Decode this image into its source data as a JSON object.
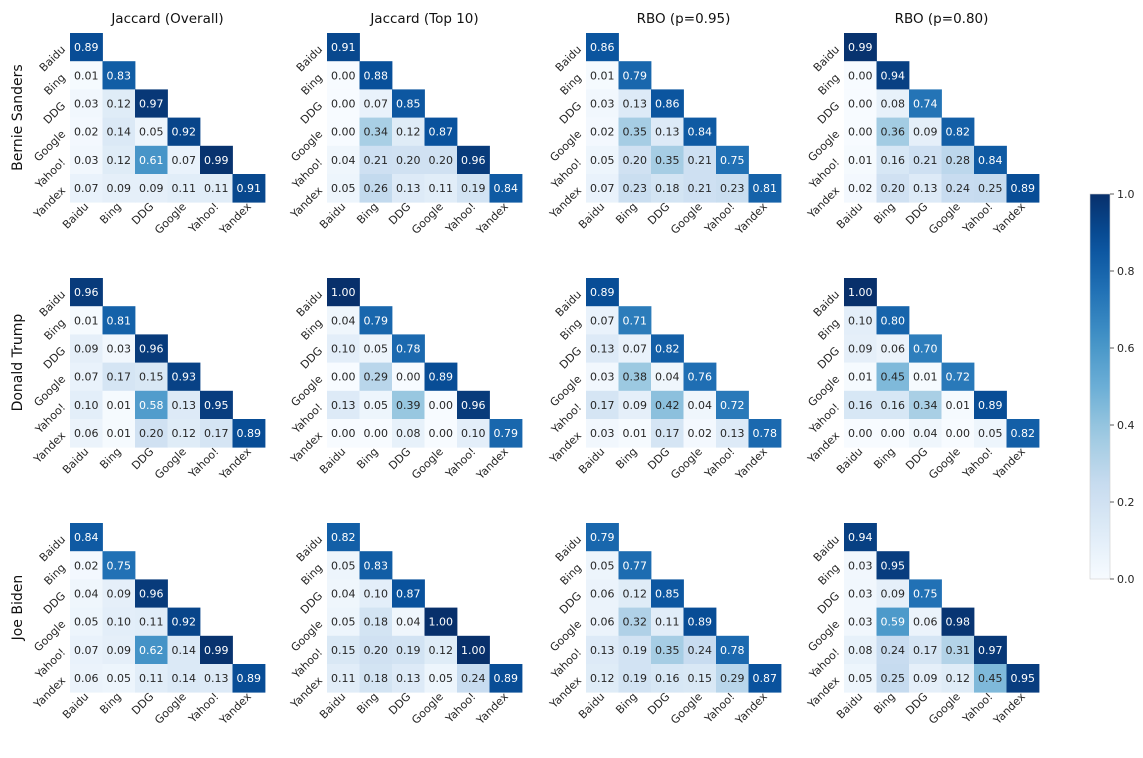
{
  "chart_data": {
    "type": "heatmap",
    "colormap": "Blues",
    "vmin": 0.0,
    "vmax": 1.0,
    "engines": [
      "Baidu",
      "Bing",
      "DDG",
      "Google",
      "Yahoo!",
      "Yandex"
    ],
    "metrics": [
      "Jaccard (Overall)",
      "Jaccard (Top 10)",
      "RBO (p=0.95)",
      "RBO (p=0.80)"
    ],
    "candidates": [
      "Bernie Sanders",
      "Donald Trump",
      "Joe Biden"
    ],
    "colorbar_ticks": [
      "0.0",
      "0.2",
      "0.4",
      "0.6",
      "0.8",
      "1.0"
    ],
    "matrices": [
      [
        [
          [
            0.89
          ],
          [
            0.01,
            0.83
          ],
          [
            0.03,
            0.12,
            0.97
          ],
          [
            0.02,
            0.14,
            0.05,
            0.92
          ],
          [
            0.03,
            0.12,
            0.61,
            0.07,
            0.99
          ],
          [
            0.07,
            0.09,
            0.09,
            0.11,
            0.11,
            0.91
          ]
        ],
        [
          [
            0.91
          ],
          [
            0.0,
            0.88
          ],
          [
            0.0,
            0.07,
            0.85
          ],
          [
            0.0,
            0.34,
            0.12,
            0.87
          ],
          [
            0.04,
            0.21,
            0.2,
            0.2,
            0.96
          ],
          [
            0.05,
            0.26,
            0.13,
            0.11,
            0.19,
            0.84
          ]
        ],
        [
          [
            0.86
          ],
          [
            0.01,
            0.79
          ],
          [
            0.03,
            0.13,
            0.86
          ],
          [
            0.02,
            0.35,
            0.13,
            0.84
          ],
          [
            0.05,
            0.2,
            0.35,
            0.21,
            0.75
          ],
          [
            0.07,
            0.23,
            0.18,
            0.21,
            0.23,
            0.81
          ]
        ],
        [
          [
            0.99
          ],
          [
            0.0,
            0.94
          ],
          [
            0.0,
            0.08,
            0.74
          ],
          [
            0.0,
            0.36,
            0.09,
            0.82
          ],
          [
            0.01,
            0.16,
            0.21,
            0.28,
            0.84
          ],
          [
            0.02,
            0.2,
            0.13,
            0.24,
            0.25,
            0.89
          ]
        ]
      ],
      [
        [
          [
            0.96
          ],
          [
            0.01,
            0.81
          ],
          [
            0.09,
            0.03,
            0.96
          ],
          [
            0.07,
            0.17,
            0.15,
            0.93
          ],
          [
            0.1,
            0.01,
            0.58,
            0.13,
            0.95
          ],
          [
            0.06,
            0.01,
            0.2,
            0.12,
            0.17,
            0.89
          ]
        ],
        [
          [
            1.0
          ],
          [
            0.04,
            0.79
          ],
          [
            0.1,
            0.05,
            0.78
          ],
          [
            0.0,
            0.29,
            0.0,
            0.89
          ],
          [
            0.13,
            0.05,
            0.39,
            0.0,
            0.96
          ],
          [
            0.0,
            0.0,
            0.08,
            0.0,
            0.1,
            0.79
          ]
        ],
        [
          [
            0.89
          ],
          [
            0.07,
            0.71
          ],
          [
            0.13,
            0.07,
            0.82
          ],
          [
            0.03,
            0.38,
            0.04,
            0.76
          ],
          [
            0.17,
            0.09,
            0.42,
            0.04,
            0.72
          ],
          [
            0.03,
            0.01,
            0.17,
            0.02,
            0.13,
            0.78
          ]
        ],
        [
          [
            1.0
          ],
          [
            0.1,
            0.8
          ],
          [
            0.09,
            0.06,
            0.7
          ],
          [
            0.01,
            0.45,
            0.01,
            0.72
          ],
          [
            0.16,
            0.16,
            0.34,
            0.01,
            0.89
          ],
          [
            0.0,
            0.0,
            0.04,
            0.0,
            0.05,
            0.82
          ]
        ]
      ],
      [
        [
          [
            0.84
          ],
          [
            0.02,
            0.75
          ],
          [
            0.04,
            0.09,
            0.96
          ],
          [
            0.05,
            0.1,
            0.11,
            0.92
          ],
          [
            0.07,
            0.09,
            0.62,
            0.14,
            0.99
          ],
          [
            0.06,
            0.05,
            0.11,
            0.14,
            0.13,
            0.89
          ]
        ],
        [
          [
            0.82
          ],
          [
            0.05,
            0.83
          ],
          [
            0.04,
            0.1,
            0.87
          ],
          [
            0.05,
            0.18,
            0.04,
            1.0
          ],
          [
            0.15,
            0.2,
            0.19,
            0.12,
            1.0
          ],
          [
            0.11,
            0.18,
            0.13,
            0.05,
            0.24,
            0.89
          ]
        ],
        [
          [
            0.79
          ],
          [
            0.05,
            0.77
          ],
          [
            0.06,
            0.12,
            0.85
          ],
          [
            0.06,
            0.32,
            0.11,
            0.89
          ],
          [
            0.13,
            0.19,
            0.35,
            0.24,
            0.78
          ],
          [
            0.12,
            0.19,
            0.16,
            0.15,
            0.29,
            0.87
          ]
        ],
        [
          [
            0.94
          ],
          [
            0.03,
            0.95
          ],
          [
            0.03,
            0.09,
            0.75
          ],
          [
            0.03,
            0.59,
            0.06,
            0.98
          ],
          [
            0.08,
            0.24,
            0.17,
            0.31,
            0.97
          ],
          [
            0.05,
            0.25,
            0.09,
            0.12,
            0.45,
            0.95
          ]
        ]
      ]
    ]
  }
}
